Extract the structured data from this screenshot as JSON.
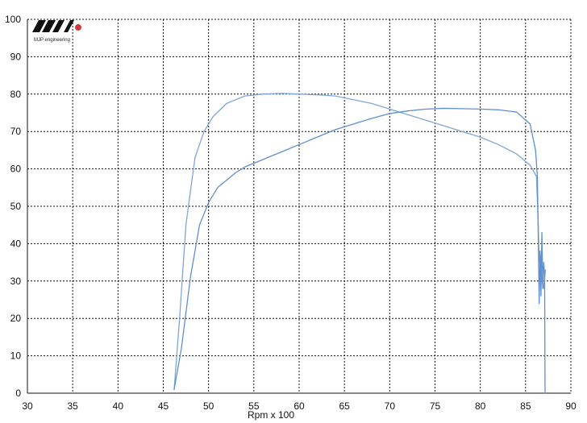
{
  "chart_data": {
    "type": "line",
    "title": "",
    "xlabel": "Rpm x 100",
    "ylabel": "",
    "xlim": [
      30,
      90
    ],
    "ylim": [
      0,
      100
    ],
    "x_ticks": [
      30,
      35,
      40,
      45,
      50,
      55,
      60,
      65,
      70,
      75,
      80,
      85,
      90
    ],
    "y_ticks": [
      0,
      10,
      20,
      30,
      40,
      50,
      60,
      70,
      80,
      90,
      100
    ],
    "x_tick_labels": [
      "30",
      "35",
      "40",
      "45",
      "50",
      "55",
      "60",
      "65",
      "70",
      "75",
      "80",
      "85",
      "90"
    ],
    "y_tick_labels": [
      "0",
      "10",
      "20",
      "30",
      "40",
      "50",
      "60",
      "70",
      "80",
      "90",
      "100"
    ],
    "grid": true,
    "legend": "none",
    "series": [
      {
        "color": "#7FA6D6",
        "x": [
          46.2,
          46.8,
          47.5,
          48.5,
          49.5,
          50.5,
          52,
          54,
          56,
          58,
          60,
          62,
          64,
          66,
          68,
          70,
          72,
          74,
          76,
          78,
          80,
          82,
          84,
          85.5,
          86.2,
          86.4,
          86.5,
          86.6,
          86.8,
          87.0,
          87.2
        ],
        "y": [
          1,
          20,
          45,
          63,
          70,
          74,
          77.5,
          79.5,
          80,
          80.2,
          80,
          79.8,
          79.5,
          78.5,
          77.5,
          76,
          74.5,
          73,
          71.5,
          70,
          68.5,
          66.5,
          64,
          61,
          58,
          45,
          35,
          38,
          30,
          28,
          33
        ]
      },
      {
        "color": "#5F8FCC",
        "x": [
          46.2,
          47,
          48,
          49,
          50,
          51,
          52,
          53,
          54,
          56,
          58,
          60,
          62,
          64,
          66,
          68,
          70,
          72,
          74,
          76,
          78,
          80,
          82,
          84,
          85.5,
          86.1,
          86.3,
          86.4,
          86.5,
          86.6,
          86.7,
          86.8,
          86.9,
          87.0,
          87.1,
          87.15
        ],
        "y": [
          1,
          12,
          31,
          45,
          51,
          55,
          57,
          59,
          60.5,
          62.5,
          64.5,
          66.5,
          68.5,
          70.5,
          72,
          73.5,
          74.8,
          75.5,
          76,
          76.2,
          76.1,
          76,
          75.8,
          75.2,
          72,
          65,
          58,
          42,
          24,
          38,
          26,
          43,
          28,
          35,
          32,
          0
        ]
      }
    ]
  },
  "logo": {
    "text": "MJP engineering"
  }
}
